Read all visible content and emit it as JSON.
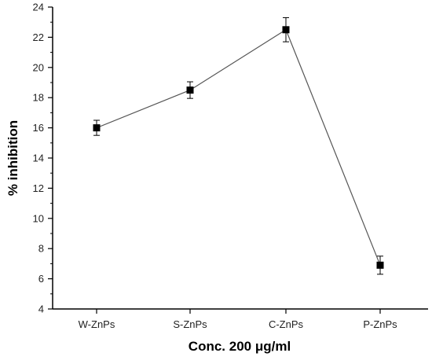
{
  "chart_data": {
    "type": "line",
    "title": "",
    "xlabel": "Conc. 200 μg/ml",
    "ylabel": "% inhibition",
    "categories": [
      "W-ZnPs",
      "S-ZnPs",
      "C-ZnPs",
      "P-ZnPs"
    ],
    "series": [
      {
        "values": [
          16.0,
          18.5,
          22.5,
          6.9
        ],
        "errors": [
          0.5,
          0.55,
          0.8,
          0.6
        ]
      }
    ],
    "ylim": [
      4,
      24
    ],
    "yticks": [
      4,
      6,
      8,
      10,
      12,
      14,
      16,
      18,
      20,
      22,
      24
    ],
    "grid": false,
    "legend": "none",
    "colors": {
      "line": "#555555",
      "marker": "#000000",
      "axis": "#000000"
    }
  }
}
